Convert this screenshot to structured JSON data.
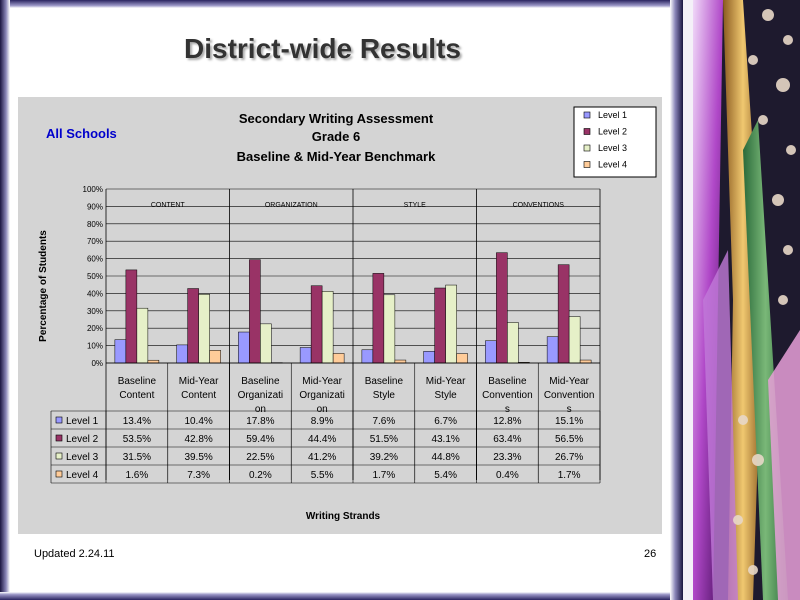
{
  "slide": {
    "title": "District-wide Results",
    "footer_left": "Updated  2.24.11",
    "page_number": "26"
  },
  "chart_data": {
    "type": "bar",
    "title_lines": [
      "Secondary Writing Assessment",
      "Grade 6",
      "Baseline & Mid-Year Benchmark"
    ],
    "subtitle": "All Schools",
    "ylabel": "Percentage of Students",
    "xlabel": "Writing Strands",
    "ylim": [
      0,
      100
    ],
    "yticks": [
      "0%",
      "10%",
      "20%",
      "30%",
      "40%",
      "50%",
      "60%",
      "70%",
      "80%",
      "90%",
      "100%"
    ],
    "grid": true,
    "legend_position": "top-right",
    "strand_labels": [
      "CONTENT",
      "ORGANIZATION",
      "STYLE",
      "CONVENTIONS"
    ],
    "categories": [
      [
        "Baseline",
        "Content"
      ],
      [
        "Mid-Year",
        "Content"
      ],
      [
        "Baseline",
        "Organizati",
        "on"
      ],
      [
        "Mid-Year",
        "Organizati",
        "on"
      ],
      [
        "Baseline",
        "Style"
      ],
      [
        "Mid-Year",
        "Style"
      ],
      [
        "Baseline",
        "Convention",
        "s"
      ],
      [
        "Mid-Year",
        "Convention",
        "s"
      ]
    ],
    "series": [
      {
        "name": "Level 1",
        "color": "#9999ff",
        "values": [
          13.4,
          10.4,
          17.8,
          8.9,
          7.6,
          6.7,
          12.8,
          15.1
        ],
        "labels": [
          "13.4%",
          "10.4%",
          "17.8%",
          "8.9%",
          "7.6%",
          "6.7%",
          "12.8%",
          "15.1%"
        ]
      },
      {
        "name": "Level 2",
        "color": "#993366",
        "values": [
          53.5,
          42.8,
          59.4,
          44.4,
          51.5,
          43.1,
          63.4,
          56.5
        ],
        "labels": [
          "53.5%",
          "42.8%",
          "59.4%",
          "44.4%",
          "51.5%",
          "43.1%",
          "63.4%",
          "56.5%"
        ]
      },
      {
        "name": "Level 3",
        "color": "#e6f0c8",
        "values": [
          31.5,
          39.5,
          22.5,
          41.2,
          39.2,
          44.8,
          23.3,
          26.7
        ],
        "labels": [
          "31.5%",
          "39.5%",
          "22.5%",
          "41.2%",
          "39.2%",
          "44.8%",
          "23.3%",
          "26.7%"
        ]
      },
      {
        "name": "Level 4",
        "color": "#ffcc99",
        "values": [
          1.6,
          7.3,
          0.2,
          5.5,
          1.7,
          5.4,
          0.4,
          1.7
        ],
        "labels": [
          "1.6%",
          "7.3%",
          "0.2%",
          "5.5%",
          "1.7%",
          "5.4%",
          "0.4%",
          "1.7%"
        ]
      }
    ]
  }
}
